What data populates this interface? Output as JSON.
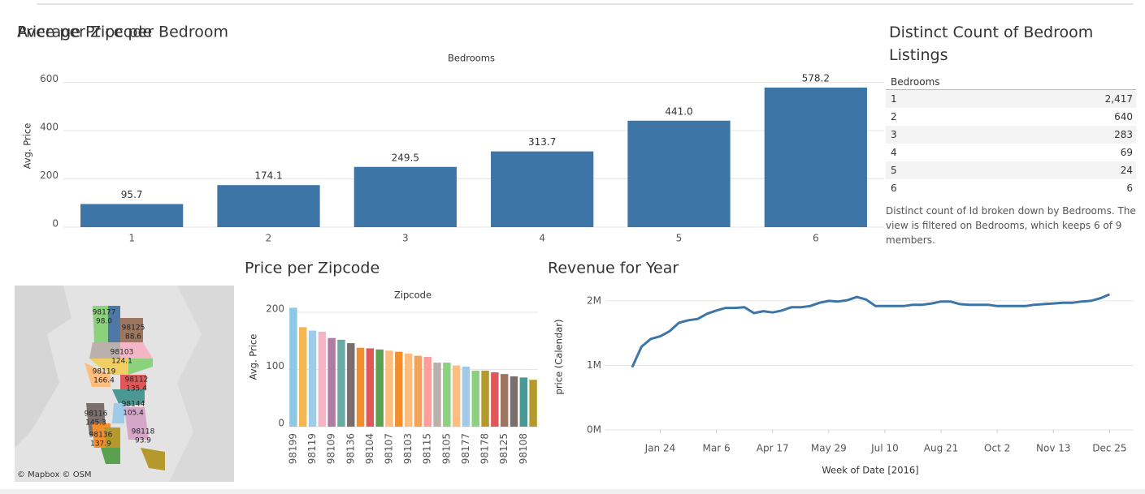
{
  "chart_data": [
    {
      "type": "bar",
      "title": "Average Price per Bedroom",
      "x_axis_title": "Bedrooms",
      "y_axis_title": "Avg. Price",
      "categories": [
        "1",
        "2",
        "3",
        "4",
        "5",
        "6"
      ],
      "values": [
        95.7,
        174.1,
        249.5,
        313.7,
        441.0,
        578.2
      ],
      "value_labels": [
        "95.7",
        "174.1",
        "249.5",
        "313.7",
        "441.0",
        "578.2"
      ],
      "color": "#3d76a6",
      "ylim": [
        0,
        620
      ],
      "yticks": [
        0,
        200,
        400,
        600
      ],
      "grid": true
    },
    {
      "type": "bar",
      "title": "Price per Zipcode",
      "x_axis_title": "Zipcode",
      "y_axis_title": "Avg. Price",
      "categories": [
        "98199",
        null,
        "98119",
        null,
        "98109",
        null,
        "98136",
        null,
        "98104",
        null,
        "98107",
        null,
        "98103",
        null,
        "98115",
        null,
        "98105",
        null,
        "98177",
        null,
        "98178",
        null,
        "98125",
        null,
        "98108",
        null
      ],
      "values": [
        208,
        174,
        168,
        166,
        155,
        152,
        146,
        138,
        137,
        135,
        133,
        131,
        128,
        124,
        122,
        112,
        112,
        107,
        105,
        98,
        98,
        95,
        92,
        88,
        86,
        82
      ],
      "colors": [
        "#8ec8e4",
        "#f4b553",
        "#a0cbe8",
        "#f4b6c6",
        "#b07aa1",
        "#6aaaa4",
        "#79706e",
        "#f28e2b",
        "#e15759",
        "#59a14f",
        "#ffbe7d",
        "#f28e2b",
        "#ffbe7d",
        "#f5a25b",
        "#ff9d9a",
        "#bab0ac",
        "#8cd17d",
        "#ffbe7d",
        "#a0cbe8",
        "#8cd17d",
        "#b6992d",
        "#e15759",
        "#9d7660",
        "#79706e",
        "#499894",
        "#b6992d"
      ],
      "ylim": [
        0,
        215
      ],
      "yticks": [
        0,
        100,
        200
      ],
      "grid": true
    },
    {
      "type": "line",
      "title": "Revenue for Year",
      "x_axis_title": "Week of Date [2016]",
      "y_axis_title": "price (Calendar)",
      "x": [
        "2016-01-03",
        "2016-01-10",
        "2016-01-17",
        "2016-01-24",
        "2016-01-31",
        "2016-02-07",
        "2016-02-14",
        "2016-02-21",
        "2016-02-28",
        "2016-03-06",
        "2016-03-13",
        "2016-03-20",
        "2016-03-27",
        "2016-04-03",
        "2016-04-10",
        "2016-04-17",
        "2016-04-24",
        "2016-05-01",
        "2016-05-08",
        "2016-05-15",
        "2016-05-22",
        "2016-05-29",
        "2016-06-05",
        "2016-06-12",
        "2016-06-19",
        "2016-06-26",
        "2016-07-03",
        "2016-07-10",
        "2016-07-17",
        "2016-07-24",
        "2016-07-31",
        "2016-08-07",
        "2016-08-14",
        "2016-08-21",
        "2016-08-28",
        "2016-09-04",
        "2016-09-11",
        "2016-09-18",
        "2016-09-25",
        "2016-10-02",
        "2016-10-09",
        "2016-10-16",
        "2016-10-23",
        "2016-10-30",
        "2016-11-06",
        "2016-11-13",
        "2016-11-20",
        "2016-11-27",
        "2016-12-04",
        "2016-12-11",
        "2016-12-18",
        "2016-12-25"
      ],
      "values": [
        970000,
        1290000,
        1410000,
        1450000,
        1530000,
        1660000,
        1700000,
        1720000,
        1800000,
        1850000,
        1890000,
        1890000,
        1900000,
        1810000,
        1840000,
        1820000,
        1850000,
        1900000,
        1900000,
        1920000,
        1970000,
        2000000,
        1990000,
        2010000,
        2060000,
        2020000,
        1920000,
        1920000,
        1920000,
        1920000,
        1940000,
        1940000,
        1960000,
        1990000,
        1990000,
        1950000,
        1940000,
        1940000,
        1940000,
        1920000,
        1920000,
        1920000,
        1920000,
        1940000,
        1950000,
        1960000,
        1970000,
        1970000,
        1990000,
        2000000,
        2040000,
        2100000
      ],
      "color": "#3d76a6",
      "xlim": [
        "2015-12-14",
        "2017-01-12"
      ],
      "xticks": [
        {
          "value": "2016-01-24",
          "label": "Jan 24"
        },
        {
          "value": "2016-03-06",
          "label": "Mar 6"
        },
        {
          "value": "2016-04-17",
          "label": "Apr 17"
        },
        {
          "value": "2016-05-29",
          "label": "May 29"
        },
        {
          "value": "2016-07-10",
          "label": "Jul 10"
        },
        {
          "value": "2016-08-21",
          "label": "Aug 21"
        },
        {
          "value": "2016-10-02",
          "label": "Oct 2"
        },
        {
          "value": "2016-11-13",
          "label": "Nov 13"
        },
        {
          "value": "2016-12-25",
          "label": "Dec 25"
        }
      ],
      "ylim": [
        0,
        2250000
      ],
      "yticks": [
        {
          "value": 0,
          "label": "0M"
        },
        {
          "value": 1000000,
          "label": "1M"
        },
        {
          "value": 2000000,
          "label": "2M"
        }
      ],
      "grid": true
    }
  ],
  "table": {
    "title": "Distinct Count of Bedroom Listings",
    "header": "Bedrooms",
    "rows": [
      [
        "1",
        "2,417"
      ],
      [
        "2",
        "640"
      ],
      [
        "3",
        "283"
      ],
      [
        "4",
        "69"
      ],
      [
        "5",
        "24"
      ],
      [
        "6",
        "6"
      ]
    ],
    "caption": "Distinct count of Id broken down by Bedrooms. The view is filtered on Bedrooms, which keeps 6 of 9 members."
  },
  "map": {
    "title": "Price per Zipcode",
    "attribution": "© Mapbox  © OSM",
    "labels": [
      {
        "zip": "98177",
        "value": "98.0"
      },
      {
        "zip": "98125",
        "value": "88.6"
      },
      {
        "zip": "98103",
        "value": "124.1"
      },
      {
        "zip": "98119",
        "value": "166.4"
      },
      {
        "zip": "98112",
        "value": "135.4"
      },
      {
        "zip": "98144",
        "value": "105.4"
      },
      {
        "zip": "98116",
        "value": "145.3"
      },
      {
        "zip": "98136",
        "value": "137.9"
      },
      {
        "zip": "98118",
        "value": "93.9"
      }
    ]
  }
}
